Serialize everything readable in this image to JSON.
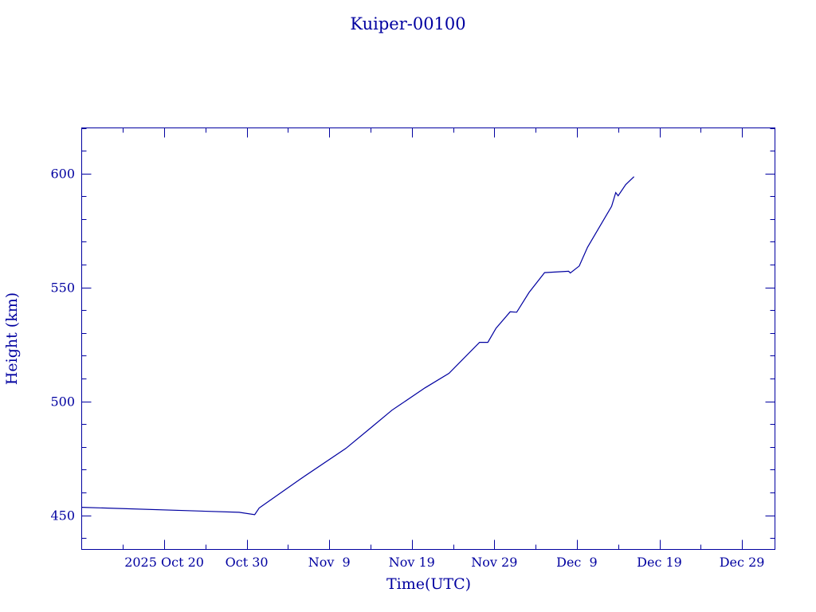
{
  "chart_data": {
    "type": "line",
    "title": "Kuiper-00100",
    "xlabel": "Time(UTC)",
    "ylabel": "Height (km)",
    "xlim": [
      "2025-10-10T00:00",
      "2026-01-02T00:00"
    ],
    "ylim": [
      435,
      620
    ],
    "x_ticks": [
      {
        "date": "2025-10-20",
        "label": "2025 Oct 20"
      },
      {
        "date": "2025-10-30",
        "label": "Oct 30"
      },
      {
        "date": "2025-11-09",
        "label": "Nov  9"
      },
      {
        "date": "2025-11-19",
        "label": "Nov 19"
      },
      {
        "date": "2025-11-29",
        "label": "Nov 29"
      },
      {
        "date": "2025-12-09",
        "label": "Dec  9"
      },
      {
        "date": "2025-12-19",
        "label": "Dec 19"
      },
      {
        "date": "2025-12-29",
        "label": "Dec 29"
      }
    ],
    "y_ticks": [
      450,
      500,
      550,
      600
    ],
    "grid": false,
    "color": "#0000a0",
    "series": [
      {
        "x": [
          "2025-10-10T00:00",
          "2025-10-29T02:00",
          "2025-10-30T23:00",
          "2025-10-31T12:00",
          "2025-11-05T12:00",
          "2025-11-11T00:00",
          "2025-11-13T22:00",
          "2025-11-16T14:00",
          "2025-11-20T14:00",
          "2025-11-23T12:00",
          "2025-11-27T05:00",
          "2025-11-28T05:00",
          "2025-11-29T05:00",
          "2025-11-30T22:00",
          "2025-12-01T17:00",
          "2025-12-03T05:00",
          "2025-12-05T02:00",
          "2025-12-08T00:00",
          "2025-12-08T05:00",
          "2025-12-09T07:00",
          "2025-12-10T07:00",
          "2025-12-13T05:00",
          "2025-12-13T17:00",
          "2025-12-14T00:00",
          "2025-12-14T22:00",
          "2025-12-15T22:00"
        ],
        "y": [
          453.5,
          451.3,
          450.3,
          453.2,
          465.9,
          479.3,
          488.0,
          496.1,
          505.9,
          512.3,
          525.9,
          525.9,
          532.1,
          539.3,
          539.1,
          547.8,
          556.5,
          557.1,
          556.3,
          559.4,
          567.6,
          585.6,
          591.6,
          590.2,
          595.1,
          598.6
        ]
      }
    ]
  }
}
